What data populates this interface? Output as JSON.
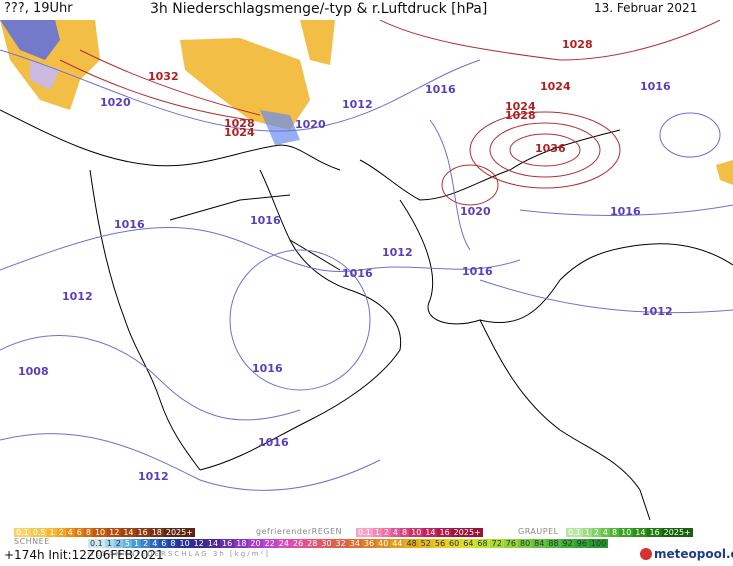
{
  "header": {
    "run_label": "???, 19Uhr",
    "title": "3h Niederschlagsmenge/-typ & r.Luftdruck [hPa]",
    "date": "13. Februar 2021"
  },
  "map": {
    "isobar_labels_blue": [
      "1020",
      "1016",
      "1012",
      "1020",
      "1016",
      "1016",
      "1016",
      "1012",
      "1016",
      "1012",
      "1008",
      "1016",
      "1016",
      "1012",
      "1020",
      "1016",
      "1012",
      "1016"
    ],
    "isobar_labels_red": [
      "1032",
      "1028",
      "1024",
      "1028",
      "1024",
      "1028",
      "1024",
      "1036"
    ],
    "colors": {
      "isobar_low": "#6f6fd0",
      "isobar_high": "#b03030",
      "coast": "#000000",
      "precip": "#f2b731"
    }
  },
  "legend": {
    "snow_title": "SCHNEE",
    "snow_values": [
      "0.1",
      "0.5",
      "1",
      "2",
      "4",
      "6",
      "8",
      "10",
      "12",
      "14",
      "16",
      "18",
      "2025+"
    ],
    "freezing_rain_title": "gefrierenderREGEN",
    "freezing_rain_values": [
      "0.1",
      "1",
      "2",
      "4",
      "8",
      "10",
      "14",
      "16",
      "2025+"
    ],
    "graupel_title": "GRAUPEL",
    "graupel_values": [
      "0.1",
      "1",
      "2",
      "4",
      "8",
      "10",
      "14",
      "16",
      "2025+"
    ],
    "total_title": "GESAMTNIEDERSCHLAG 3h [kg/m²]",
    "total_values": [
      "0.1",
      "1",
      "2",
      "5",
      "1",
      "2",
      "4",
      "6",
      "8",
      "10",
      "12",
      "14",
      "16",
      "18",
      "20",
      "22",
      "24",
      "26",
      "28",
      "30",
      "32",
      "34",
      "36",
      "40",
      "44",
      "48",
      "52",
      "56",
      "60",
      "64",
      "68",
      "72",
      "76",
      "80",
      "84",
      "88",
      "92",
      "96",
      "100"
    ]
  },
  "footer": {
    "init_label": "+174h Init:12Z06FEB2021",
    "logo_text": "meteopool.org"
  }
}
